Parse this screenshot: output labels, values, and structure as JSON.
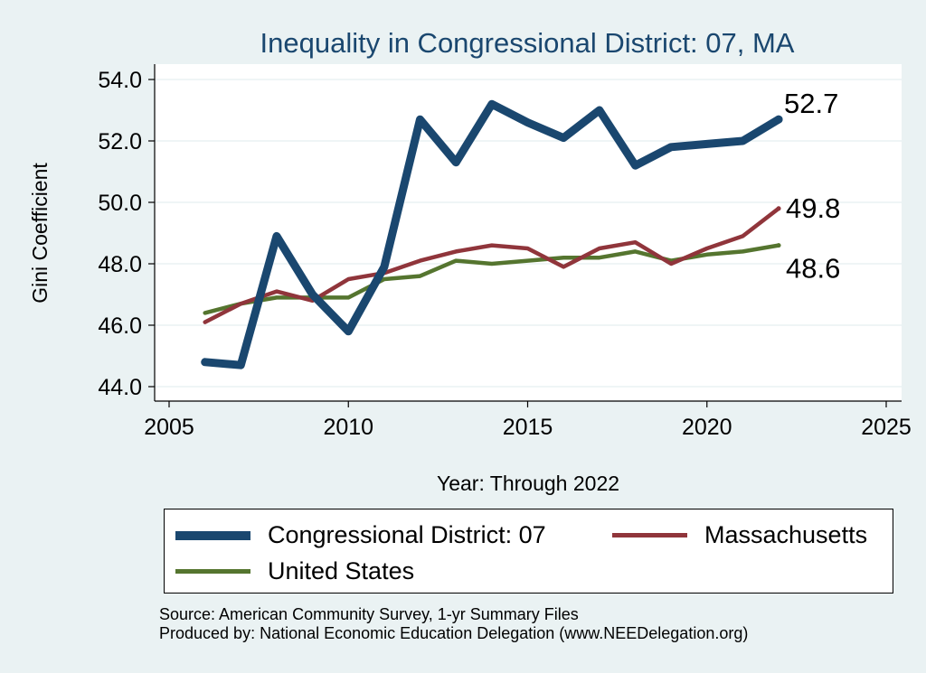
{
  "chart_data": {
    "type": "line",
    "title": "Inequality in Congressional District:  07, MA",
    "xlabel": "Year: Through 2022",
    "ylabel": "Gini Coefficient",
    "xlim": [
      2005,
      2025
    ],
    "ylim": [
      44.0,
      54.0
    ],
    "x_ticks": [
      2005,
      2010,
      2015,
      2020,
      2025
    ],
    "x_tick_labels": [
      "2005",
      "2010",
      "2015",
      "2020",
      "2025"
    ],
    "y_ticks": [
      44.0,
      46.0,
      48.0,
      50.0,
      52.0,
      54.0
    ],
    "y_tick_labels": [
      "44.0",
      "46.0",
      "48.0",
      "50.0",
      "52.0",
      "54.0"
    ],
    "grid": true,
    "series": [
      {
        "name": "Congressional District:  07",
        "color": "#1a476f",
        "x": [
          2006,
          2007,
          2008,
          2009,
          2010,
          2011,
          2012,
          2013,
          2014,
          2015,
          2016,
          2017,
          2018,
          2019,
          2020,
          2021,
          2022
        ],
        "values": [
          44.8,
          44.7,
          48.9,
          47.0,
          45.8,
          47.9,
          52.7,
          51.3,
          53.2,
          52.6,
          52.1,
          53.0,
          51.2,
          51.8,
          51.9,
          52.0,
          52.7
        ],
        "end_label": "52.7"
      },
      {
        "name": "Massachusetts",
        "color": "#90353b",
        "x": [
          2006,
          2007,
          2008,
          2009,
          2010,
          2011,
          2012,
          2013,
          2014,
          2015,
          2016,
          2017,
          2018,
          2019,
          2020,
          2021,
          2022
        ],
        "values": [
          46.1,
          46.7,
          47.1,
          46.8,
          47.5,
          47.7,
          48.1,
          48.4,
          48.6,
          48.5,
          47.9,
          48.5,
          48.7,
          48.0,
          48.5,
          48.9,
          49.8
        ],
        "end_label": "49.8"
      },
      {
        "name": "United States",
        "color": "#55752f",
        "x": [
          2006,
          2007,
          2008,
          2009,
          2010,
          2011,
          2012,
          2013,
          2014,
          2015,
          2016,
          2017,
          2018,
          2019,
          2020,
          2021,
          2022
        ],
        "values": [
          46.4,
          46.7,
          46.9,
          46.9,
          46.9,
          47.5,
          47.6,
          48.1,
          48.0,
          48.1,
          48.2,
          48.2,
          48.4,
          48.1,
          48.3,
          48.4,
          48.6
        ],
        "end_label": "48.6"
      }
    ],
    "legend_position": "bottom",
    "source_line1": "Source: American Community Survey, 1-yr Summary Files",
    "source_line2": "Produced by: National Economic Education Delegation (www.NEEDelegation.org)"
  }
}
